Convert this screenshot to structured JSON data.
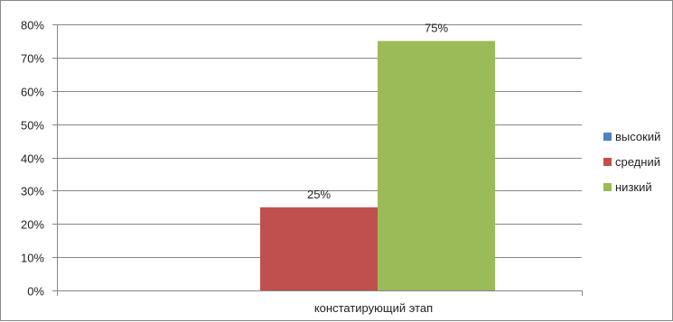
{
  "chart_data": {
    "type": "bar",
    "categories": [
      "констатирующий этап"
    ],
    "series": [
      {
        "name": "высокий",
        "values": [
          0
        ],
        "color": "#4F81BD"
      },
      {
        "name": "средний",
        "values": [
          25
        ],
        "color": "#C0504D"
      },
      {
        "name": "низкий",
        "values": [
          75
        ],
        "color": "#9BBB59"
      }
    ],
    "data_labels": [
      "",
      "25%",
      "75%"
    ],
    "ylim": [
      0,
      80
    ],
    "yticks": [
      0,
      10,
      20,
      30,
      40,
      50,
      60,
      70,
      80
    ],
    "ytick_labels": [
      "0%",
      "10%",
      "20%",
      "30%",
      "40%",
      "50%",
      "60%",
      "70%",
      "80%"
    ],
    "grid": true,
    "legend_position": "right"
  }
}
